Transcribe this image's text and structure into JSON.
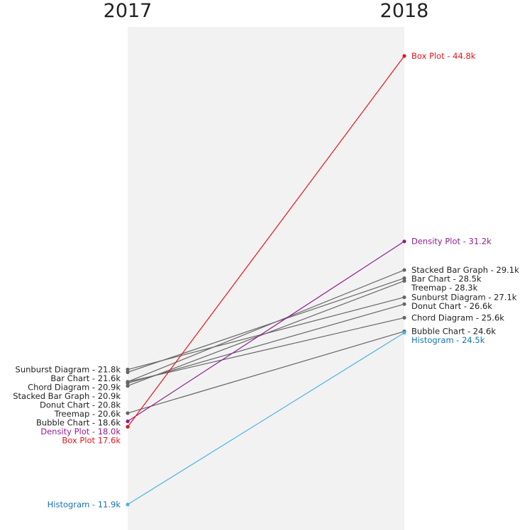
{
  "chart_data": {
    "type": "line",
    "x": [
      "2017",
      "2018"
    ],
    "x_labels": [
      "2017",
      "2018"
    ],
    "value_unit": "k",
    "ylim": [
      11.9,
      44.8
    ],
    "grid": false,
    "legend": "none",
    "band_color": "#f2f2f2",
    "series": [
      {
        "name": "Sunburst Diagram",
        "values": [
          21.8,
          27.1
        ],
        "color": "#666666",
        "label_color": "#222222",
        "left_label": "Sunburst Diagram - 21.8k",
        "right_label": "Sunburst Diagram - 27.1k"
      },
      {
        "name": "Bar Chart",
        "values": [
          21.6,
          28.5
        ],
        "color": "#666666",
        "label_color": "#222222",
        "left_label": "Bar Chart - 21.6k",
        "right_label": "Bar Chart - 28.5k"
      },
      {
        "name": "Chord Diagram",
        "values": [
          20.9,
          25.6
        ],
        "color": "#666666",
        "label_color": "#222222",
        "left_label": "Chord Diagram - 20.9k",
        "right_label": "Chord Diagram - 25.6k"
      },
      {
        "name": "Stacked Bar Graph",
        "values": [
          20.9,
          29.1
        ],
        "color": "#666666",
        "label_color": "#222222",
        "left_label": "Stacked Bar Graph - 20.9k",
        "right_label": "Stacked Bar Graph - 29.1k"
      },
      {
        "name": "Donut Chart",
        "values": [
          20.8,
          26.6
        ],
        "color": "#666666",
        "label_color": "#222222",
        "left_label": "Donut Chart - 20.8k",
        "right_label": "Donut Chart - 26.6k"
      },
      {
        "name": "Treemap",
        "values": [
          20.6,
          28.3
        ],
        "color": "#666666",
        "label_color": "#222222",
        "left_label": "Treemap - 20.6k",
        "right_label": "Treemap - 28.3k"
      },
      {
        "name": "Bubble Chart",
        "values": [
          18.6,
          24.6
        ],
        "color": "#666666",
        "label_color": "#222222",
        "left_label": "Bubble Chart - 18.6k",
        "right_label": "Bubble Chart - 24.6k"
      },
      {
        "name": "Density Plot",
        "values": [
          18.0,
          31.2
        ],
        "color": "#8e1f8e",
        "label_color": "#8e1f8e",
        "left_label": "Density Plot - 18.0k",
        "right_label": "Density Plot - 31.2k"
      },
      {
        "name": "Box Plot",
        "values": [
          17.6,
          44.8
        ],
        "color": "#e8141c",
        "label_color": "#e8141c",
        "left_label": "Box Plot 17.6k",
        "right_label": "Box Plot - 44.8k"
      },
      {
        "name": "Histogram",
        "values": [
          11.9,
          24.5
        ],
        "color": "#4fb3e6",
        "label_color": "#1673b8",
        "left_label": "Histogram - 11.9k",
        "right_label": "Histogram - 24.5k"
      }
    ]
  }
}
